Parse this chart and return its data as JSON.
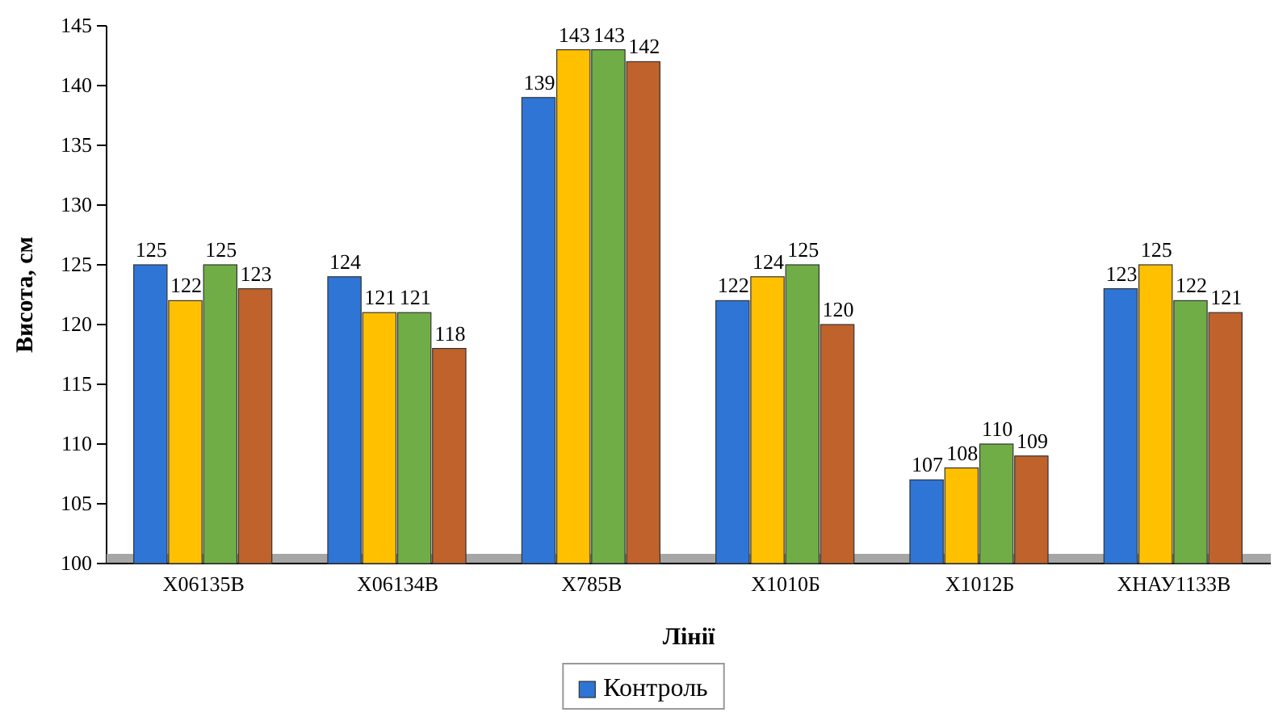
{
  "chart_data": {
    "type": "bar",
    "xlabel": "Лінії",
    "ylabel": "Висота, см",
    "categories": [
      "Х06135В",
      "Х06134В",
      "Х785В",
      "Х1010Б",
      "Х1012Б",
      "ХНАУ1133В"
    ],
    "series": [
      {
        "name": "Контроль",
        "color": "#2e75d6",
        "values": [
          125,
          124,
          139,
          122,
          107,
          123
        ]
      },
      {
        "color": "#ffc000",
        "values": [
          122,
          121,
          143,
          124,
          108,
          125
        ]
      },
      {
        "color": "#70ad47",
        "values": [
          125,
          121,
          143,
          125,
          110,
          122
        ]
      },
      {
        "color": "#c0622b",
        "values": [
          123,
          118,
          142,
          120,
          109,
          121
        ]
      }
    ],
    "ylim": [
      100,
      145
    ],
    "yticks": [
      100,
      105,
      110,
      115,
      120,
      125,
      130,
      135,
      140,
      145
    ],
    "data_labels": true,
    "legend": "bottom",
    "grid": false
  }
}
